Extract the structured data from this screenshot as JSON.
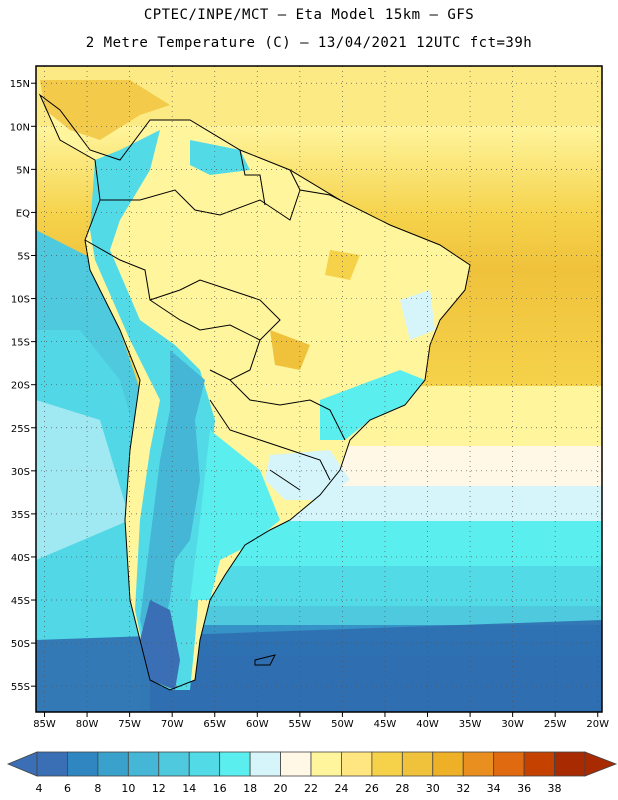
{
  "header": {
    "line1": "CPTEC/INPE/MCT –  Eta Model 15km – GFS",
    "line2": "2 Metre Temperature (C) – 13/04/2021 12UTC fct=39h"
  },
  "map": {
    "lat_labels": [
      "15N",
      "10N",
      "5N",
      "EQ",
      "5S",
      "10S",
      "15S",
      "20S",
      "25S",
      "30S",
      "35S",
      "40S",
      "45S",
      "50S",
      "55S"
    ],
    "lat_values": [
      15,
      10,
      5,
      0,
      -5,
      -10,
      -15,
      -20,
      -25,
      -30,
      -35,
      -40,
      -45,
      -50,
      -55
    ],
    "lon_labels": [
      "85W",
      "80W",
      "75W",
      "70W",
      "65W",
      "60W",
      "55W",
      "50W",
      "45W",
      "40W",
      "35W",
      "30W",
      "25W",
      "20W"
    ],
    "lon_values": [
      -85,
      -80,
      -75,
      -70,
      -65,
      -60,
      -55,
      -50,
      -45,
      -40,
      -35,
      -30,
      -25,
      -20
    ],
    "lon_range": [
      -86,
      -19.5
    ],
    "lat_range": [
      -58,
      17
    ]
  },
  "colorbar": {
    "labels": [
      "4",
      "6",
      "8",
      "10",
      "12",
      "14",
      "16",
      "18",
      "20",
      "22",
      "24",
      "26",
      "28",
      "30",
      "32",
      "34",
      "36",
      "38"
    ],
    "colors": [
      "#3a6fb5",
      "#2f86c0",
      "#3aa1cc",
      "#45b6d6",
      "#4ec9de",
      "#52dbe6",
      "#5beeee",
      "#d6f5fa",
      "#fff8e6",
      "#fff59d",
      "#ffe680",
      "#f5d24a",
      "#f0c23c",
      "#eeb026",
      "#e88f20",
      "#e06a10",
      "#c44100",
      "#a82a00"
    ]
  }
}
